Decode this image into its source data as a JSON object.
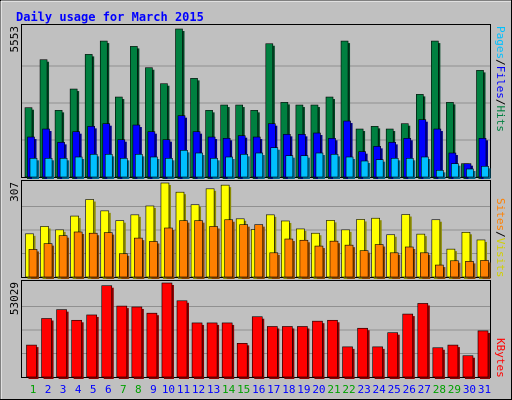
{
  "title": "Daily usage for March 2015",
  "colors": {
    "title": "#0000ff",
    "background": "#c0c0c0",
    "pages": "#00c0ff",
    "files": "#0000ff",
    "hits": "#008040",
    "sites": "#ff8000",
    "visits": "#ffff00",
    "kbytes": "#ff0000",
    "weekday_label": "#0000ff",
    "weekend_label": "#00a000"
  },
  "days": [
    "1",
    "2",
    "3",
    "4",
    "5",
    "6",
    "7",
    "8",
    "9",
    "10",
    "11",
    "12",
    "13",
    "14",
    "15",
    "16",
    "17",
    "18",
    "19",
    "20",
    "21",
    "22",
    "23",
    "24",
    "25",
    "26",
    "27",
    "28",
    "29",
    "30",
    "31"
  ],
  "weekend_days": [
    1,
    7,
    8,
    14,
    15,
    21,
    22,
    28,
    29
  ],
  "panels": {
    "top": {
      "max_label": "5553",
      "legend": {
        "pages": "Pages",
        "sep1": "/",
        "files": "Files",
        "sep2": "/",
        "hits": "Hits"
      }
    },
    "middle": {
      "max_label": "307",
      "legend": {
        "sites": "Sites",
        "sep": "/",
        "visits": "Visits"
      }
    },
    "bottom": {
      "max_label": "53029",
      "legend": {
        "kbytes": "KBytes"
      }
    }
  },
  "chart_data": [
    {
      "type": "bar",
      "categories": [
        "1",
        "2",
        "3",
        "4",
        "5",
        "6",
        "7",
        "8",
        "9",
        "10",
        "11",
        "12",
        "13",
        "14",
        "15",
        "16",
        "17",
        "18",
        "19",
        "20",
        "21",
        "22",
        "23",
        "24",
        "25",
        "26",
        "27",
        "28",
        "29",
        "30",
        "31"
      ],
      "ymax": 5553,
      "series": [
        {
          "name": "Hits",
          "values": [
            2600,
            4400,
            2500,
            3300,
            4600,
            5100,
            3000,
            4900,
            4100,
            3500,
            5553,
            3700,
            2500,
            2700,
            2700,
            2500,
            5000,
            2800,
            2700,
            2700,
            3000,
            5100,
            1800,
            1900,
            1800,
            2000,
            3100,
            5100,
            2800,
            500,
            4000
          ]
        },
        {
          "name": "Files",
          "values": [
            1500,
            1800,
            1300,
            1700,
            1900,
            2000,
            1400,
            1950,
            1700,
            1400,
            2300,
            1700,
            1500,
            1450,
            1550,
            1500,
            2000,
            1600,
            1600,
            1650,
            1450,
            2100,
            950,
            1150,
            1300,
            1450,
            2150,
            1800,
            900,
            500,
            1450
          ]
        },
        {
          "name": "Pages",
          "values": [
            700,
            700,
            700,
            750,
            850,
            850,
            700,
            850,
            750,
            700,
            1000,
            900,
            700,
            750,
            850,
            900,
            1100,
            800,
            800,
            900,
            850,
            750,
            600,
            650,
            700,
            700,
            750,
            250,
            500,
            300,
            400
          ]
        }
      ]
    },
    {
      "type": "bar",
      "categories": [
        "1",
        "2",
        "3",
        "4",
        "5",
        "6",
        "7",
        "8",
        "9",
        "10",
        "11",
        "12",
        "13",
        "14",
        "15",
        "16",
        "17",
        "18",
        "19",
        "20",
        "21",
        "22",
        "23",
        "24",
        "25",
        "26",
        "27",
        "28",
        "29",
        "30",
        "31"
      ],
      "ymax": 307,
      "series": [
        {
          "name": "Visits",
          "values": [
            141,
            165,
            154,
            199,
            253,
            216,
            184,
            203,
            232,
            307,
            277,
            236,
            288,
            300,
            190,
            155,
            203,
            183,
            157,
            143,
            185,
            154,
            188,
            192,
            138,
            204,
            140,
            187,
            91,
            146,
            121
          ]
        },
        {
          "name": "Sites",
          "values": [
            90,
            109,
            135,
            147,
            143,
            145,
            76,
            127,
            116,
            160,
            184,
            184,
            165,
            187,
            171,
            171,
            79,
            124,
            120,
            101,
            117,
            104,
            86,
            106,
            79,
            98,
            79,
            39,
            53,
            51,
            54
          ]
        }
      ]
    },
    {
      "type": "bar",
      "categories": [
        "1",
        "2",
        "3",
        "4",
        "5",
        "6",
        "7",
        "8",
        "9",
        "10",
        "11",
        "12",
        "13",
        "14",
        "15",
        "16",
        "17",
        "18",
        "19",
        "20",
        "21",
        "22",
        "23",
        "24",
        "25",
        "26",
        "27",
        "28",
        "29",
        "30",
        "31"
      ],
      "ymax": 53029,
      "series": [
        {
          "name": "KBytes",
          "values": [
            18000,
            33000,
            38000,
            32000,
            35000,
            51500,
            40000,
            39500,
            36000,
            53029,
            43000,
            30500,
            30500,
            30500,
            19000,
            34000,
            28500,
            28500,
            28500,
            31500,
            32000,
            17000,
            27500,
            17000,
            25000,
            35500,
            41500,
            16500,
            18000,
            12000,
            26000
          ]
        }
      ]
    }
  ]
}
